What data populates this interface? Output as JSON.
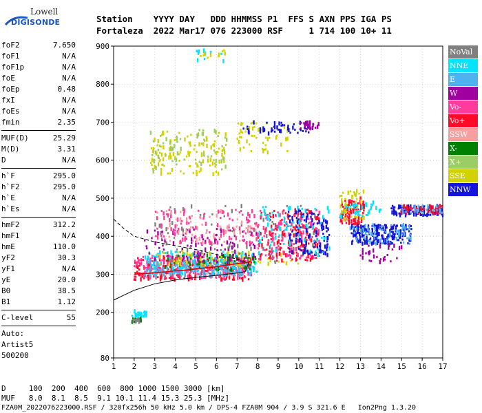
{
  "logo": {
    "line1": "Lowell",
    "line2": "DIGISONDE"
  },
  "header": {
    "line1": "Station    YYYY DAY   DDD HHMMSS P1  FFS S AXN PPS IGA PS",
    "line2": "Fortaleza  2022 Mar17 076 223000 RSF     1 714 100 10+ 11"
  },
  "params": {
    "group1": [
      {
        "name": "foF2",
        "value": "7.650"
      },
      {
        "name": "foF1",
        "value": "N/A"
      },
      {
        "name": "foF1p",
        "value": "N/A"
      },
      {
        "name": "foE",
        "value": "N/A"
      },
      {
        "name": "foEp",
        "value": "0.48"
      },
      {
        "name": "fxI",
        "value": "N/A"
      },
      {
        "name": "foEs",
        "value": "N/A"
      },
      {
        "name": "fmin",
        "value": "2.35"
      }
    ],
    "group2": [
      {
        "name": "MUF(D)",
        "value": "25.29"
      },
      {
        "name": "M(D)",
        "value": "3.31"
      },
      {
        "name": "D",
        "value": "N/A"
      }
    ],
    "group3": [
      {
        "name": "h`F",
        "value": "295.0"
      },
      {
        "name": "h`F2",
        "value": "295.0"
      },
      {
        "name": "h`E",
        "value": "N/A"
      },
      {
        "name": "h`Es",
        "value": "N/A"
      }
    ],
    "group4": [
      {
        "name": "hmF2",
        "value": "312.2"
      },
      {
        "name": "hmF1",
        "value": "N/A"
      },
      {
        "name": "hmE",
        "value": "110.0"
      },
      {
        "name": "yF2",
        "value": "30.3"
      },
      {
        "name": "yF1",
        "value": "N/A"
      },
      {
        "name": "yE",
        "value": "20.0"
      },
      {
        "name": "B0",
        "value": "38.5"
      },
      {
        "name": "B1",
        "value": "1.12"
      }
    ],
    "group5": [
      {
        "name": "C-level",
        "value": "55"
      }
    ],
    "auto": [
      "Auto:",
      "Artist5",
      "500200"
    ]
  },
  "legend": [
    {
      "label": "NoVal",
      "color": "#808080"
    },
    {
      "label": "NNE",
      "color": "#00e5ff"
    },
    {
      "label": "E",
      "color": "#4fb2ef"
    },
    {
      "label": "W",
      "color": "#a000a0"
    },
    {
      "label": "Vo-",
      "color": "#ff3c9b"
    },
    {
      "label": "Vo+",
      "color": "#ff0a28"
    },
    {
      "label": "SSW",
      "color": "#f5a0a0"
    },
    {
      "label": "X-",
      "color": "#008000"
    },
    {
      "label": "X+",
      "color": "#9acd64"
    },
    {
      "label": "SSE",
      "color": "#d2d200"
    },
    {
      "label": "NNW",
      "color": "#1414dc"
    }
  ],
  "footer": {
    "line1": "D     100  200  400  600  800 1000 1500 3000 [km]",
    "line2": "MUF   8.0  8.1  8.5  9.1 10.1 11.4 15.3 25.3 [MHz]",
    "line3": "FZA0M_2022076223000.RSF / 320fx256h 50 kHz 5.0 km / DPS-4 FZA0M 904 / 3.9 S 321.6 E   Ion2Png 1.3.20"
  },
  "chart_data": {
    "type": "scatter",
    "title": "",
    "xlabel": "",
    "ylabel": "",
    "xlim": [
      1,
      17
    ],
    "ylim": [
      80,
      900
    ],
    "x_ticks": [
      1,
      2,
      3,
      4,
      5,
      6,
      7,
      8,
      9,
      10,
      11,
      12,
      13,
      14,
      15,
      16,
      17
    ],
    "y_ticks": [
      80,
      200,
      300,
      400,
      500,
      600,
      700,
      800,
      900
    ],
    "grid": true,
    "legend_position": "right",
    "profile_curve": {
      "x": [
        2.0,
        2.5,
        3.0,
        3.5,
        4.0,
        4.5,
        5.0,
        5.5,
        6.0,
        6.5,
        7.0,
        7.5,
        7.65
      ],
      "y": [
        300,
        302,
        304,
        306,
        309,
        311,
        314,
        317,
        320,
        324,
        328,
        331,
        334
      ]
    },
    "upper_bound_curve": {
      "x": [
        1.0,
        1.5,
        2.0,
        3.0,
        4.0,
        5.0,
        6.0,
        7.0,
        7.6
      ],
      "y": [
        445,
        420,
        400,
        385,
        375,
        365,
        352,
        340,
        330
      ]
    },
    "lower_bound_curve": {
      "x": [
        1.0,
        1.5,
        2.0,
        3.0,
        4.0,
        5.0,
        6.0,
        7.0,
        7.4,
        7.6
      ],
      "y": [
        232,
        245,
        258,
        275,
        285,
        292,
        297,
        303,
        307,
        335
      ]
    },
    "clusters": [
      {
        "series": "NNE",
        "x": [
          1.9,
          2.6
        ],
        "y": [
          185,
          205
        ],
        "n": 30
      },
      {
        "series": "X-",
        "x": [
          1.9,
          2.4
        ],
        "y": [
          170,
          185
        ],
        "n": 12
      },
      {
        "series": "NoVal",
        "x": [
          1.9,
          2.4
        ],
        "y": [
          170,
          185
        ],
        "n": 8
      },
      {
        "series": "Vo+",
        "x": [
          2.0,
          7.7
        ],
        "y": [
          285,
          345
        ],
        "n": 260
      },
      {
        "series": "Vo-",
        "x": [
          2.0,
          7.7
        ],
        "y": [
          290,
          350
        ],
        "n": 220
      },
      {
        "series": "E",
        "x": [
          2.5,
          7.8
        ],
        "y": [
          295,
          335
        ],
        "n": 200
      },
      {
        "series": "NNE",
        "x": [
          2.5,
          8.0
        ],
        "y": [
          300,
          360
        ],
        "n": 120
      },
      {
        "series": "X-",
        "x": [
          3.5,
          8.0
        ],
        "y": [
          310,
          350
        ],
        "n": 60
      },
      {
        "series": "W",
        "x": [
          2.5,
          8.0
        ],
        "y": [
          330,
          420
        ],
        "n": 110
      },
      {
        "series": "SSE",
        "x": [
          3.0,
          10.0
        ],
        "y": [
          320,
          360
        ],
        "n": 60
      },
      {
        "series": "NoVal",
        "x": [
          3.0,
          11.0
        ],
        "y": [
          330,
          480
        ],
        "n": 90
      },
      {
        "series": "Vo+",
        "x": [
          8.0,
          11.0
        ],
        "y": [
          335,
          470
        ],
        "n": 160
      },
      {
        "series": "Vo-",
        "x": [
          8.0,
          11.0
        ],
        "y": [
          340,
          470
        ],
        "n": 120
      },
      {
        "series": "NNW",
        "x": [
          9.5,
          11.5
        ],
        "y": [
          350,
          470
        ],
        "n": 110
      },
      {
        "series": "NNE",
        "x": [
          8.0,
          11.5
        ],
        "y": [
          350,
          480
        ],
        "n": 70
      },
      {
        "series": "SSE",
        "x": [
          2.8,
          6.5
        ],
        "y": [
          560,
          680
        ],
        "n": 120
      },
      {
        "series": "X+",
        "x": [
          2.8,
          6.5
        ],
        "y": [
          570,
          680
        ],
        "n": 60
      },
      {
        "series": "SSE",
        "x": [
          7.0,
          9.5
        ],
        "y": [
          620,
          700
        ],
        "n": 50
      },
      {
        "series": "NNW",
        "x": [
          7.3,
          10.5
        ],
        "y": [
          670,
          700
        ],
        "n": 50
      },
      {
        "series": "W",
        "x": [
          10.0,
          11.0
        ],
        "y": [
          680,
          700
        ],
        "n": 25
      },
      {
        "series": "Vo-",
        "x": [
          3.0,
          8.0
        ],
        "y": [
          380,
          470
        ],
        "n": 120
      },
      {
        "series": "SSW",
        "x": [
          3.0,
          8.0
        ],
        "y": [
          380,
          470
        ],
        "n": 60
      },
      {
        "series": "NNE",
        "x": [
          5.0,
          6.5
        ],
        "y": [
          860,
          890
        ],
        "n": 12
      },
      {
        "series": "SSE",
        "x": [
          5.0,
          6.5
        ],
        "y": [
          860,
          890
        ],
        "n": 10
      },
      {
        "series": "Vo+",
        "x": [
          12.0,
          13.2
        ],
        "y": [
          430,
          500
        ],
        "n": 90
      },
      {
        "series": "SSE",
        "x": [
          12.0,
          13.2
        ],
        "y": [
          440,
          520
        ],
        "n": 50
      },
      {
        "series": "NNE",
        "x": [
          12.0,
          14.0
        ],
        "y": [
          450,
          490
        ],
        "n": 40
      },
      {
        "series": "NNW",
        "x": [
          12.5,
          15.5
        ],
        "y": [
          380,
          430
        ],
        "n": 200
      },
      {
        "series": "E",
        "x": [
          12.5,
          15.5
        ],
        "y": [
          380,
          430
        ],
        "n": 60
      },
      {
        "series": "W",
        "x": [
          13.0,
          15.0
        ],
        "y": [
          330,
          380
        ],
        "n": 30
      },
      {
        "series": "NNW",
        "x": [
          14.5,
          17.0
        ],
        "y": [
          455,
          480
        ],
        "n": 120
      },
      {
        "series": "Vo+",
        "x": [
          15.0,
          17.0
        ],
        "y": [
          460,
          480
        ],
        "n": 50
      },
      {
        "series": "E",
        "x": [
          15.0,
          17.0
        ],
        "y": [
          460,
          480
        ],
        "n": 30
      }
    ]
  }
}
